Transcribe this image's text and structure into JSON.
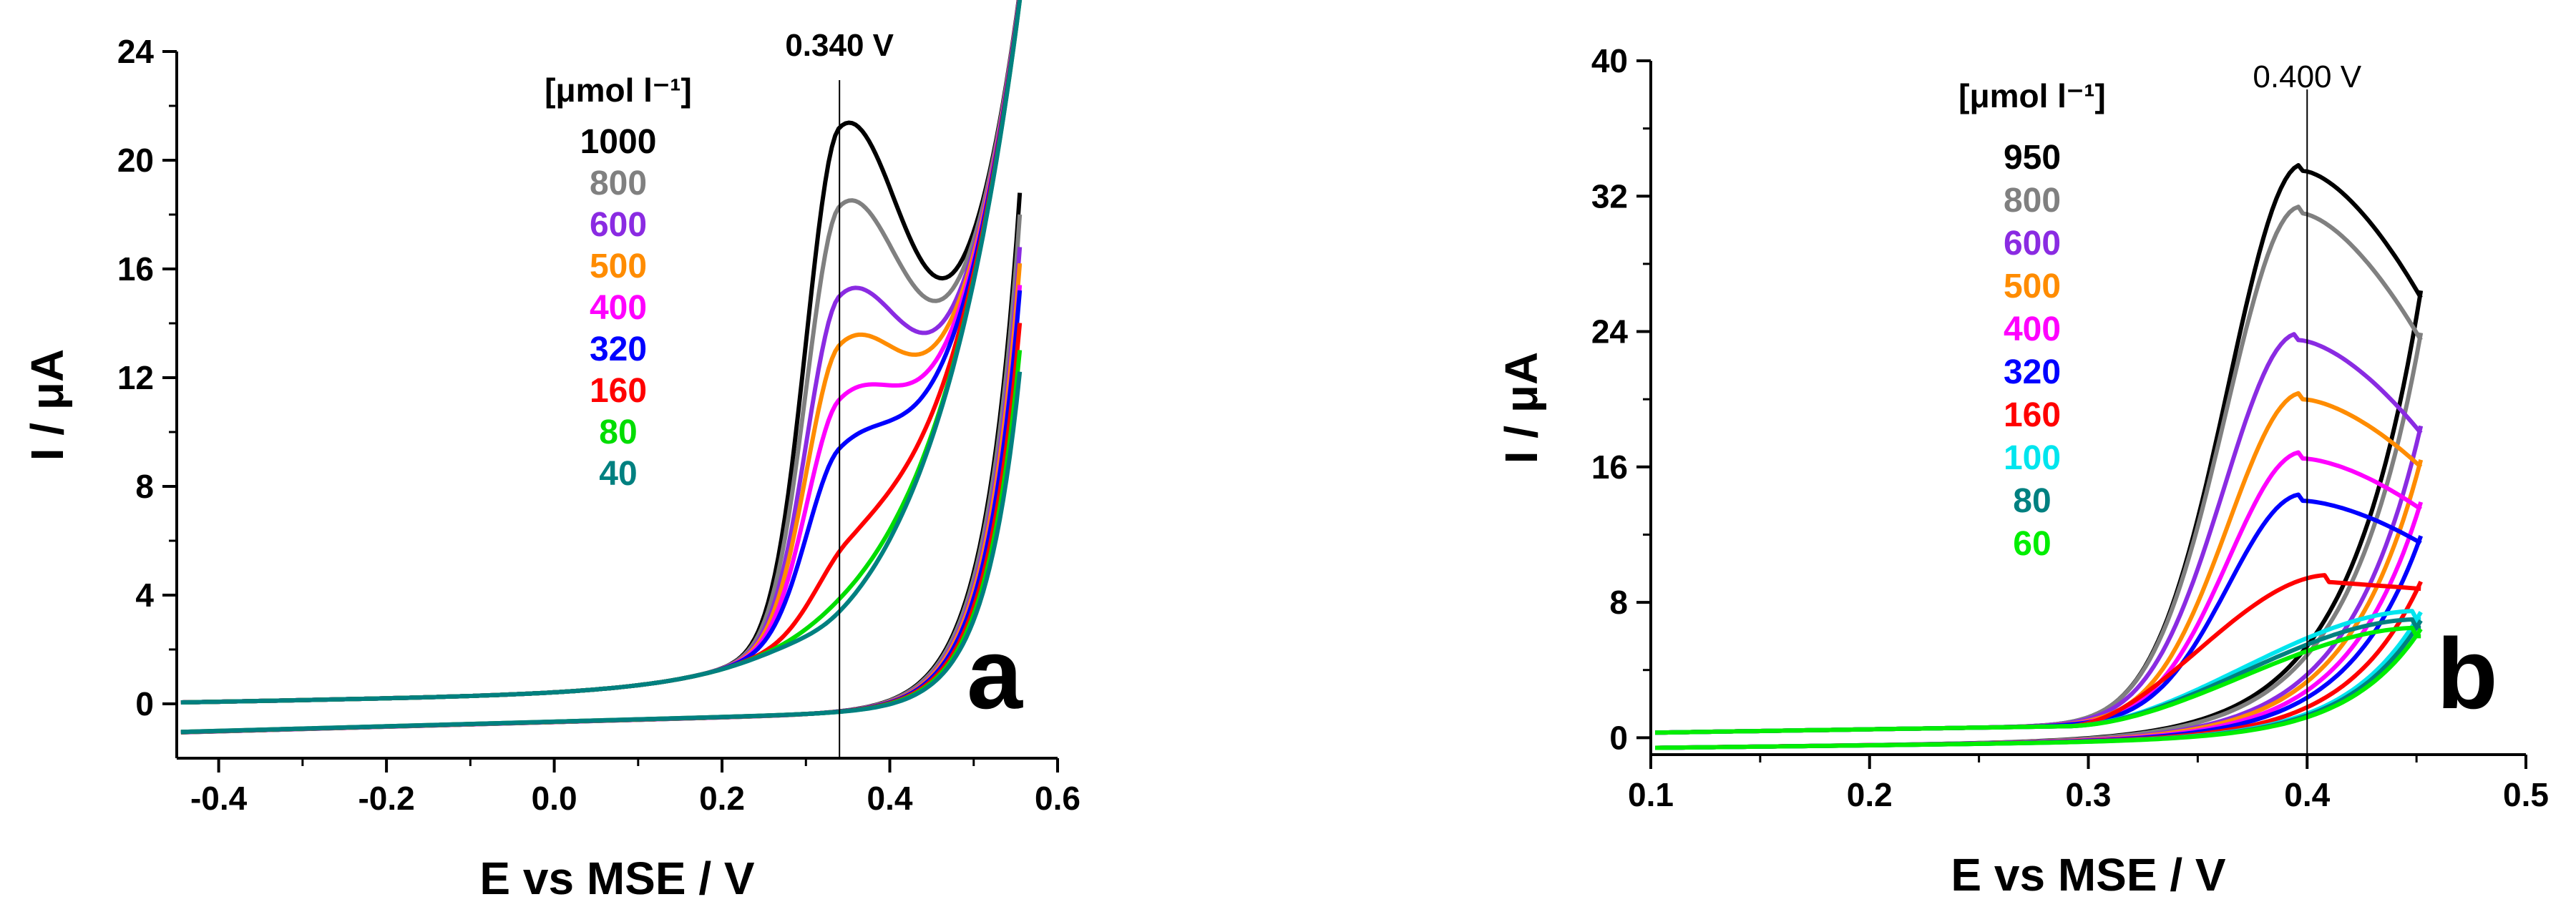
{
  "chart_data": [
    {
      "type": "line",
      "panel_label": "a",
      "xlabel": "E vs MSE / V",
      "ylabel": "I / μA",
      "xlim": [
        -0.45,
        0.6
      ],
      "ylim": [
        -2,
        24
      ],
      "xticks": [
        -0.4,
        -0.2,
        0.0,
        0.2,
        0.4,
        0.6
      ],
      "xtick_labels": [
        "-0.4",
        "-0.2",
        "0.0",
        "0.2",
        "0.4",
        "0.6"
      ],
      "yticks": [
        0,
        4,
        8,
        12,
        16,
        20,
        24
      ],
      "ytick_labels": [
        "0",
        "4",
        "8",
        "12",
        "16",
        "20",
        "24"
      ],
      "grid": false,
      "legend_title": "[μmol l⁻¹]",
      "legend_position": "top-center",
      "marker_line": {
        "x": 0.34,
        "label": "0.340 V"
      },
      "series": [
        {
          "name": "1000",
          "color": "#000000",
          "peak_x": 0.34,
          "peak_y": 21.2,
          "valley_x": 0.47,
          "valley_y": 14.6,
          "end_y": 18.2
        },
        {
          "name": "800",
          "color": "#808080",
          "peak_x": 0.34,
          "peak_y": 18.3,
          "valley_x": 0.46,
          "valley_y": 13.1,
          "end_y": 17.4
        },
        {
          "name": "600",
          "color": "#8a2be2",
          "peak_x": 0.34,
          "peak_y": 15.0,
          "valley_x": 0.45,
          "valley_y": 11.4,
          "end_y": 16.2
        },
        {
          "name": "500",
          "color": "#ff8c00",
          "peak_x": 0.34,
          "peak_y": 13.2,
          "valley_x": 0.45,
          "valley_y": 10.3,
          "end_y": 15.6
        },
        {
          "name": "400",
          "color": "#ff00ff",
          "peak_x": 0.34,
          "peak_y": 11.2,
          "valley_x": 0.44,
          "valley_y": 9.4,
          "end_y": 14.8
        },
        {
          "name": "320",
          "color": "#0000ff",
          "peak_x": 0.34,
          "peak_y": 9.4,
          "valley_x": 0.43,
          "valley_y": 8.3,
          "end_y": 14.6
        },
        {
          "name": "160",
          "color": "#ff0000",
          "peak_x": 0.35,
          "peak_y": 6.0,
          "valley_x": 0.4,
          "valley_y": 6.0,
          "end_y": 13.4
        },
        {
          "name": "80",
          "color": "#00dd00",
          "peak_x": 0.35,
          "peak_y": 4.2,
          "valley_x": 0.4,
          "valley_y": 4.6,
          "end_y": 12.4
        },
        {
          "name": "40",
          "color": "#008080",
          "peak_x": 0.34,
          "peak_y": 3.4,
          "valley_x": 0.4,
          "valley_y": 4.2,
          "end_y": 11.6
        }
      ]
    },
    {
      "type": "line",
      "panel_label": "b",
      "xlabel": "E vs MSE / V",
      "ylabel": "I / μA",
      "xlim": [
        0.1,
        0.5
      ],
      "ylim": [
        -1,
        40
      ],
      "xticks": [
        0.1,
        0.2,
        0.3,
        0.4,
        0.5
      ],
      "xtick_labels": [
        "0.1",
        "0.2",
        "0.3",
        "0.4",
        "0.5"
      ],
      "yticks": [
        0,
        8,
        16,
        24,
        32,
        40
      ],
      "ytick_labels": [
        "0",
        "8",
        "16",
        "24",
        "32",
        "40"
      ],
      "grid": false,
      "legend_title": "[μmol l⁻¹]",
      "legend_position": "top-left",
      "marker_line": {
        "x": 0.4,
        "label": "0.400 V"
      },
      "series": [
        {
          "name": "950",
          "color": "#000000",
          "peak_x": 0.398,
          "peak_y": 33.5,
          "end_y": 26.0
        },
        {
          "name": "800",
          "color": "#808080",
          "peak_x": 0.397,
          "peak_y": 31.0,
          "end_y": 23.5
        },
        {
          "name": "600",
          "color": "#8a2be2",
          "peak_x": 0.396,
          "peak_y": 23.5,
          "end_y": 18.0
        },
        {
          "name": "500",
          "color": "#ff8c00",
          "peak_x": 0.398,
          "peak_y": 20.0,
          "end_y": 16.0
        },
        {
          "name": "400",
          "color": "#ff00ff",
          "peak_x": 0.398,
          "peak_y": 16.5,
          "end_y": 13.5
        },
        {
          "name": "320",
          "color": "#0000ff",
          "peak_x": 0.398,
          "peak_y": 14.0,
          "end_y": 11.5
        },
        {
          "name": "160",
          "color": "#ff0000",
          "peak_x": 0.41,
          "peak_y": 9.2,
          "end_y": 8.8
        },
        {
          "name": "100",
          "color": "#00e5ee",
          "peak_x": 0.45,
          "peak_y": 7.0,
          "end_y": 7.0
        },
        {
          "name": "80",
          "color": "#008080",
          "peak_x": 0.45,
          "peak_y": 6.5,
          "end_y": 6.5
        },
        {
          "name": "60",
          "color": "#00ee00",
          "peak_x": 0.45,
          "peak_y": 6.0,
          "end_y": 6.0
        }
      ]
    }
  ]
}
